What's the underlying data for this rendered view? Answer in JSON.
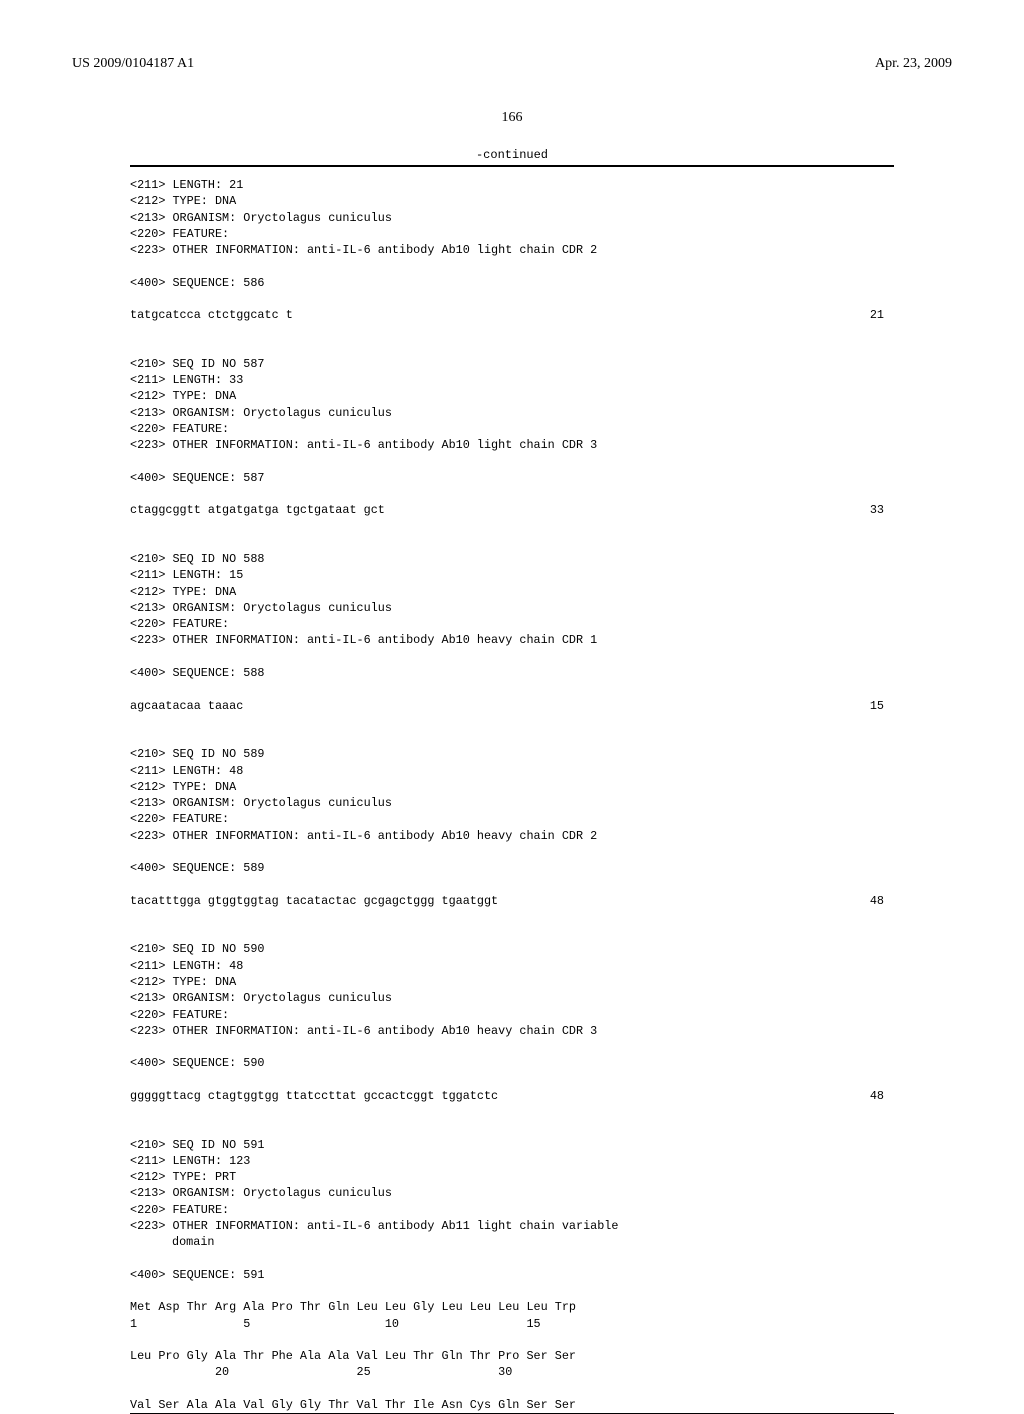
{
  "header": {
    "pub_number": "US 2009/0104187 A1",
    "date": "Apr. 23, 2009"
  },
  "page_number": "166",
  "continued_label": "-continued",
  "entries": [
    {
      "meta": [
        "<211> LENGTH: 21",
        "<212> TYPE: DNA",
        "<213> ORGANISM: Oryctolagus cuniculus",
        "<220> FEATURE:",
        "<223> OTHER INFORMATION: anti-IL-6 antibody Ab10 light chain CDR 2"
      ],
      "seq_label": "<400> SEQUENCE: 586",
      "sequence": "tatgcatcca ctctggcatc t",
      "length": "21"
    },
    {
      "meta": [
        "<210> SEQ ID NO 587",
        "<211> LENGTH: 33",
        "<212> TYPE: DNA",
        "<213> ORGANISM: Oryctolagus cuniculus",
        "<220> FEATURE:",
        "<223> OTHER INFORMATION: anti-IL-6 antibody Ab10 light chain CDR 3"
      ],
      "seq_label": "<400> SEQUENCE: 587",
      "sequence": "ctaggcggtt atgatgatga tgctgataat gct",
      "length": "33"
    },
    {
      "meta": [
        "<210> SEQ ID NO 588",
        "<211> LENGTH: 15",
        "<212> TYPE: DNA",
        "<213> ORGANISM: Oryctolagus cuniculus",
        "<220> FEATURE:",
        "<223> OTHER INFORMATION: anti-IL-6 antibody Ab10 heavy chain CDR 1"
      ],
      "seq_label": "<400> SEQUENCE: 588",
      "sequence": "agcaatacaa taaac",
      "length": "15"
    },
    {
      "meta": [
        "<210> SEQ ID NO 589",
        "<211> LENGTH: 48",
        "<212> TYPE: DNA",
        "<213> ORGANISM: Oryctolagus cuniculus",
        "<220> FEATURE:",
        "<223> OTHER INFORMATION: anti-IL-6 antibody Ab10 heavy chain CDR 2"
      ],
      "seq_label": "<400> SEQUENCE: 589",
      "sequence": "tacatttgga gtggtggtag tacatactac gcgagctggg tgaatggt",
      "length": "48"
    },
    {
      "meta": [
        "<210> SEQ ID NO 590",
        "<211> LENGTH: 48",
        "<212> TYPE: DNA",
        "<213> ORGANISM: Oryctolagus cuniculus",
        "<220> FEATURE:",
        "<223> OTHER INFORMATION: anti-IL-6 antibody Ab10 heavy chain CDR 3"
      ],
      "seq_label": "<400> SEQUENCE: 590",
      "sequence": "gggggttacg ctagtggtgg ttatccttat gccactcggt tggatctc",
      "length": "48"
    },
    {
      "meta": [
        "<210> SEQ ID NO 591",
        "<211> LENGTH: 123",
        "<212> TYPE: PRT",
        "<213> ORGANISM: Oryctolagus cuniculus",
        "<220> FEATURE:",
        "<223> OTHER INFORMATION: anti-IL-6 antibody Ab11 light chain variable"
      ],
      "meta_indent": "domain",
      "seq_label": "<400> SEQUENCE: 591",
      "protein_rows": [
        {
          "seq": "Met Asp Thr Arg Ala Pro Thr Gln Leu Leu Gly Leu Leu Leu Leu Trp",
          "nums": "1               5                   10                  15"
        },
        {
          "seq": "Leu Pro Gly Ala Thr Phe Ala Ala Val Leu Thr Gln Thr Pro Ser Ser",
          "nums": "            20                  25                  30"
        },
        {
          "seq": "Val Ser Ala Ala Val Gly Gly Thr Val Thr Ile Asn Cys Gln Ser Ser",
          "nums": ""
        }
      ]
    }
  ]
}
